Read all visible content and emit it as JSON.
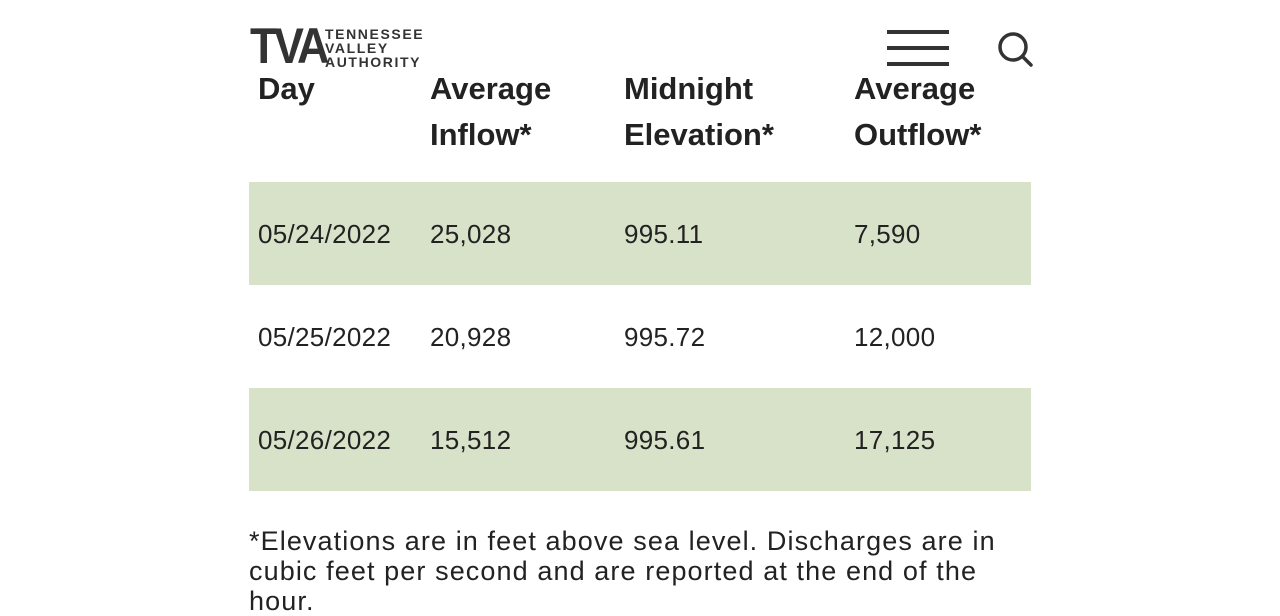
{
  "header": {
    "logo_mark": "TVA",
    "logo_text": [
      "TENNESSEE",
      "VALLEY",
      "AUTHORITY"
    ]
  },
  "table": {
    "columns": [
      "Day",
      "Average Inflow*",
      "Midnight Elevation*",
      "Average Outflow*"
    ],
    "rows": [
      [
        "05/24/2022",
        "25,028",
        "995.11",
        "7,590"
      ],
      [
        "05/25/2022",
        "20,928",
        "995.72",
        "12,000"
      ],
      [
        "05/26/2022",
        "15,512",
        "995.61",
        "17,125"
      ]
    ]
  },
  "footnote": "*Elevations are in feet above sea level. Discharges are in cubic feet per second and are reported at the end of the hour."
}
